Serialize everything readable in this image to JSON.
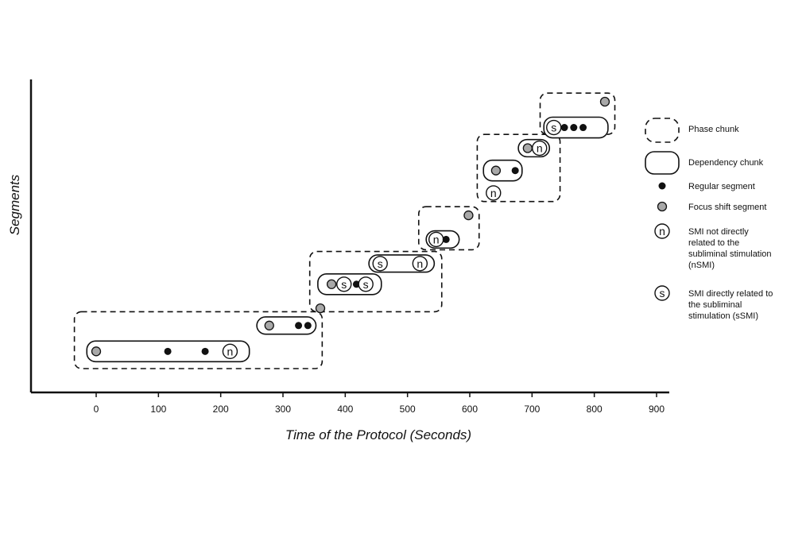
{
  "chart_data": {
    "type": "scatter",
    "title": "",
    "xlabel": "Time of the Protocol (Seconds)",
    "ylabel": "Segments",
    "xlim": [
      -105,
      920
    ],
    "ylim": [
      0,
      19
    ],
    "x_ticks": [
      0,
      100,
      200,
      300,
      400,
      500,
      600,
      700,
      800,
      900
    ],
    "segment_types": {
      "regular": "Regular segment",
      "focus": "Focus shift segment",
      "nsmi": "SMI not directly related to the subliminal stimulation (nSMI)",
      "ssmi": "SMI directly related to the subliminal stimulation (sSMI)"
    },
    "segments": [
      {
        "x": 0,
        "y": 1,
        "kind": "focus"
      },
      {
        "x": 115,
        "y": 1,
        "kind": "regular"
      },
      {
        "x": 175,
        "y": 1,
        "kind": "regular"
      },
      {
        "x": 215,
        "y": 1,
        "kind": "nsmi"
      },
      {
        "x": 278,
        "y": 2.5,
        "kind": "focus"
      },
      {
        "x": 325,
        "y": 2.5,
        "kind": "regular"
      },
      {
        "x": 340,
        "y": 2.5,
        "kind": "regular"
      },
      {
        "x": 360,
        "y": 3.5,
        "kind": "focus"
      },
      {
        "x": 378,
        "y": 4.9,
        "kind": "focus"
      },
      {
        "x": 398,
        "y": 4.9,
        "kind": "ssmi"
      },
      {
        "x": 418,
        "y": 4.9,
        "kind": "regular"
      },
      {
        "x": 433,
        "y": 4.9,
        "kind": "ssmi"
      },
      {
        "x": 456,
        "y": 6.1,
        "kind": "ssmi"
      },
      {
        "x": 520,
        "y": 6.1,
        "kind": "nsmi"
      },
      {
        "x": 546,
        "y": 7.5,
        "kind": "nsmi"
      },
      {
        "x": 562,
        "y": 7.5,
        "kind": "regular"
      },
      {
        "x": 598,
        "y": 8.9,
        "kind": "focus"
      },
      {
        "x": 638,
        "y": 10.2,
        "kind": "nsmi"
      },
      {
        "x": 642,
        "y": 11.5,
        "kind": "focus"
      },
      {
        "x": 673,
        "y": 11.5,
        "kind": "regular"
      },
      {
        "x": 693,
        "y": 12.8,
        "kind": "focus"
      },
      {
        "x": 712,
        "y": 12.8,
        "kind": "nsmi"
      },
      {
        "x": 735,
        "y": 14.0,
        "kind": "ssmi"
      },
      {
        "x": 752,
        "y": 14.0,
        "kind": "regular"
      },
      {
        "x": 767,
        "y": 14.0,
        "kind": "regular"
      },
      {
        "x": 782,
        "y": 14.0,
        "kind": "regular"
      },
      {
        "x": 817,
        "y": 15.5,
        "kind": "focus"
      }
    ],
    "dependency_chunks": [
      {
        "x0": -15,
        "x1": 246,
        "y0": 0.4,
        "y1": 1.6
      },
      {
        "x0": 258,
        "x1": 353,
        "y0": 2.0,
        "y1": 3.0
      },
      {
        "x0": 356,
        "x1": 458,
        "y0": 4.3,
        "y1": 5.5
      },
      {
        "x0": 438,
        "x1": 543,
        "y0": 5.6,
        "y1": 6.6
      },
      {
        "x0": 530,
        "x1": 583,
        "y0": 7.0,
        "y1": 8.0
      },
      {
        "x0": 622,
        "x1": 684,
        "y0": 10.9,
        "y1": 12.1
      },
      {
        "x0": 678,
        "x1": 728,
        "y0": 12.3,
        "y1": 13.3
      },
      {
        "x0": 719,
        "x1": 822,
        "y0": 13.4,
        "y1": 14.6
      }
    ],
    "phase_chunks": [
      {
        "x0": -35,
        "x1": 363,
        "y0": 0.0,
        "y1": 3.3
      },
      {
        "x0": 343,
        "x1": 555,
        "y0": 3.3,
        "y1": 6.8
      },
      {
        "x0": 518,
        "x1": 615,
        "y0": 6.9,
        "y1": 9.4
      },
      {
        "x0": 612,
        "x1": 745,
        "y0": 9.7,
        "y1": 13.6
      },
      {
        "x0": 713,
        "x1": 833,
        "y0": 13.6,
        "y1": 16.0
      }
    ],
    "legend": {
      "position": "right",
      "entries": [
        {
          "symbol": "phase",
          "label_lines": [
            "Phase chunk"
          ]
        },
        {
          "symbol": "dependency",
          "label_lines": [
            "Dependency chunk"
          ]
        },
        {
          "symbol": "regular",
          "label_lines": [
            "Regular segment"
          ]
        },
        {
          "symbol": "focus",
          "label_lines": [
            "Focus shift segment"
          ]
        },
        {
          "symbol": "nsmi",
          "label_lines": [
            "SMI not directly",
            "related to the",
            "subliminal stimulation",
            "(nSMI)"
          ]
        },
        {
          "symbol": "ssmi",
          "label_lines": [
            "SMI directly related to",
            "the subliminal",
            "stimulation (sSMI)"
          ]
        }
      ]
    },
    "symbol_letters": {
      "nsmi": "n",
      "ssmi": "s"
    },
    "colors": {
      "ink": "#111111",
      "focus_fill": "#a8a8a8",
      "background": "#ffffff"
    }
  }
}
